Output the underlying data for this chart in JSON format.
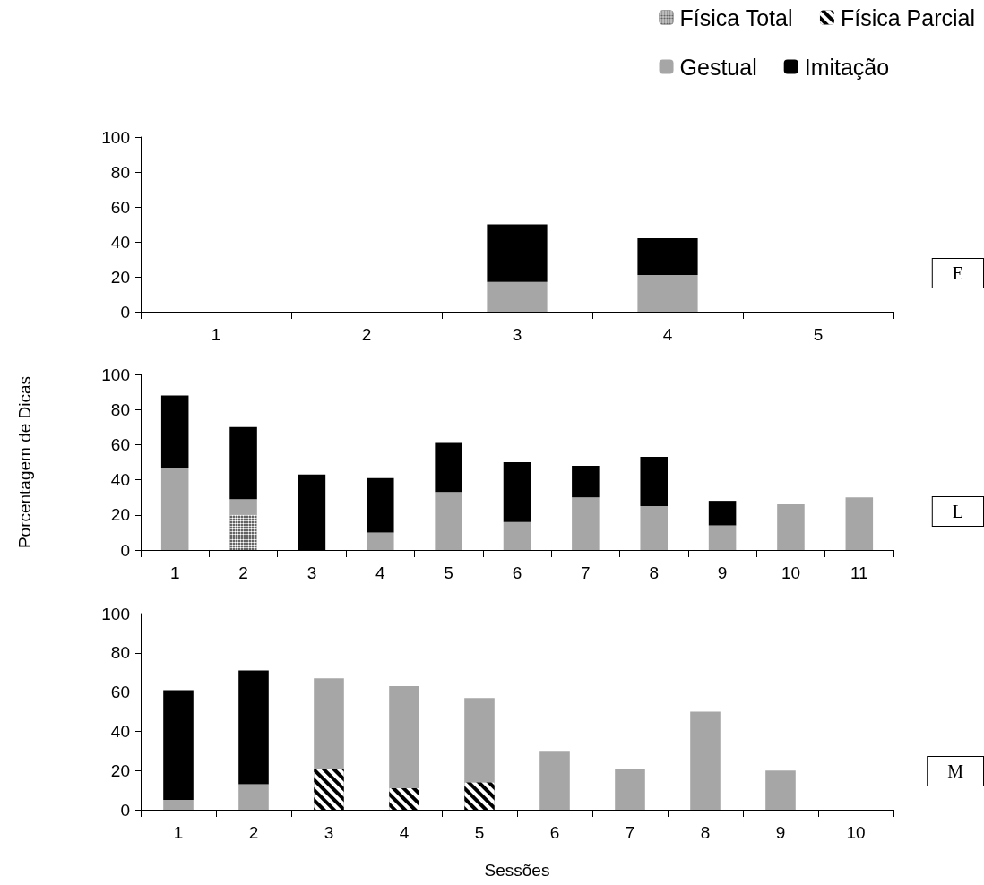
{
  "chart_data": [
    {
      "type": "bar",
      "stacked": true,
      "categories": [
        "1",
        "2",
        "3",
        "4",
        "5"
      ],
      "ylim": [
        0,
        100
      ],
      "yticks": [
        0,
        20,
        40,
        60,
        80,
        100
      ],
      "grid": false,
      "legend": "top right",
      "annotations": [
        "E"
      ],
      "series": [
        {
          "name": "Física Total",
          "color": "#000000",
          "values": [
            0,
            0,
            0,
            0,
            0
          ]
        },
        {
          "name": "Física Parcial",
          "color": "#000000",
          "values": [
            0,
            0,
            0,
            0,
            0
          ]
        },
        {
          "name": "Gestual",
          "color": "#a6a6a6",
          "values": [
            0,
            0,
            17,
            21,
            0
          ]
        },
        {
          "name": "Imitação",
          "color": "#000000",
          "values": [
            0,
            0,
            33,
            21,
            0
          ]
        }
      ]
    },
    {
      "type": "bar",
      "stacked": true,
      "categories": [
        "1",
        "2",
        "3",
        "4",
        "5",
        "6",
        "7",
        "8",
        "9",
        "10",
        "11"
      ],
      "ylim": [
        0,
        100
      ],
      "yticks": [
        0,
        20,
        40,
        60,
        80,
        100
      ],
      "grid": false,
      "legend": false,
      "ylabel": "Porcentagem de Dicas",
      "annotations": [
        "L"
      ],
      "series": [
        {
          "color": "#000000",
          "values": [
            0,
            20,
            0,
            0,
            0,
            0,
            0,
            0,
            0,
            0,
            0
          ]
        },
        {
          "color": "#000000",
          "values": [
            0,
            0,
            0,
            0,
            0,
            0,
            0,
            0,
            0,
            0,
            0
          ]
        },
        {
          "color": "#a6a6a6",
          "values": [
            47,
            9,
            0,
            10,
            33,
            16,
            30,
            25,
            14,
            26,
            30
          ]
        },
        {
          "color": "#000000",
          "values": [
            41,
            41,
            43,
            31,
            28,
            34,
            18,
            28,
            14,
            0,
            0
          ]
        }
      ]
    },
    {
      "type": "bar",
      "stacked": true,
      "categories": [
        "1",
        "2",
        "3",
        "4",
        "5",
        "6",
        "7",
        "8",
        "9",
        "10"
      ],
      "ylim": [
        0,
        100
      ],
      "yticks": [
        0,
        20,
        40,
        60,
        80,
        100
      ],
      "grid": false,
      "legend": false,
      "xlabel": "Sessões",
      "annotations": [
        "M"
      ],
      "series": [
        {
          "color": "#000000",
          "values": [
            0,
            0,
            0,
            0,
            0,
            0,
            0,
            0,
            0,
            0
          ]
        },
        {
          "color": "#000000",
          "values": [
            0,
            0,
            21,
            11,
            14,
            0,
            0,
            0,
            0,
            0
          ]
        },
        {
          "color": "#a6a6a6",
          "values": [
            5,
            13,
            46,
            52,
            43,
            30,
            21,
            50,
            20,
            0
          ]
        },
        {
          "color": "#000000",
          "values": [
            56,
            58,
            0,
            0,
            0,
            0,
            0,
            0,
            0,
            0
          ]
        }
      ]
    }
  ]
}
